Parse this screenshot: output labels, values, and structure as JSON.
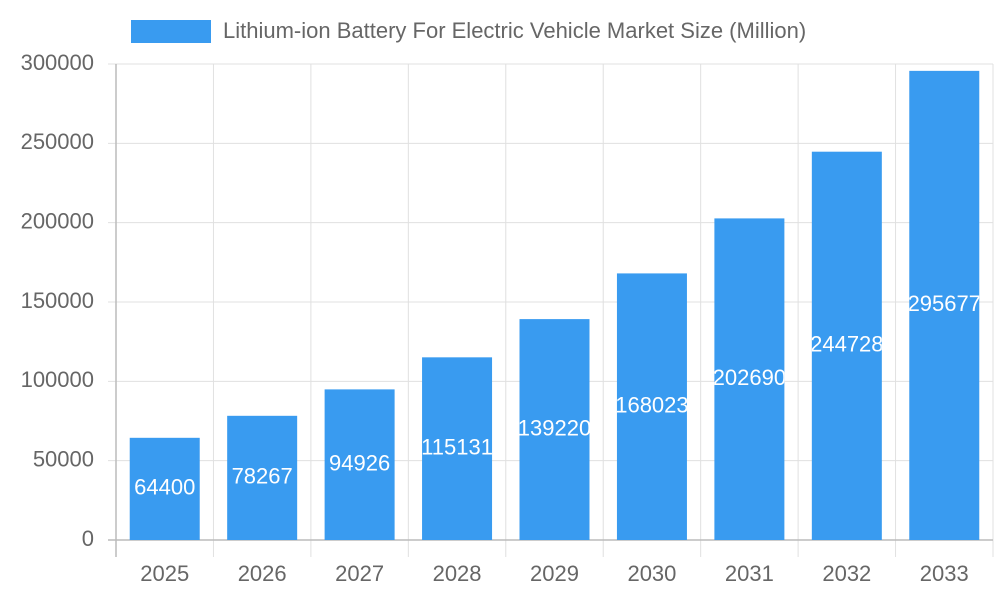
{
  "chart_data": {
    "type": "bar",
    "categories": [
      "2025",
      "2026",
      "2027",
      "2028",
      "2029",
      "2030",
      "2031",
      "2032",
      "2033"
    ],
    "series": [
      {
        "name": "Lithium-ion Battery For Electric Vehicle Market Size (Million)",
        "color": "#399bf0",
        "values": [
          64400,
          78267,
          94926,
          115131,
          139220,
          168023,
          202690,
          244728,
          295677
        ]
      }
    ],
    "ylim": [
      0,
      300000
    ],
    "yticks": [
      0,
      50000,
      100000,
      150000,
      200000,
      250000,
      300000
    ],
    "grid": true,
    "legend": "top"
  }
}
